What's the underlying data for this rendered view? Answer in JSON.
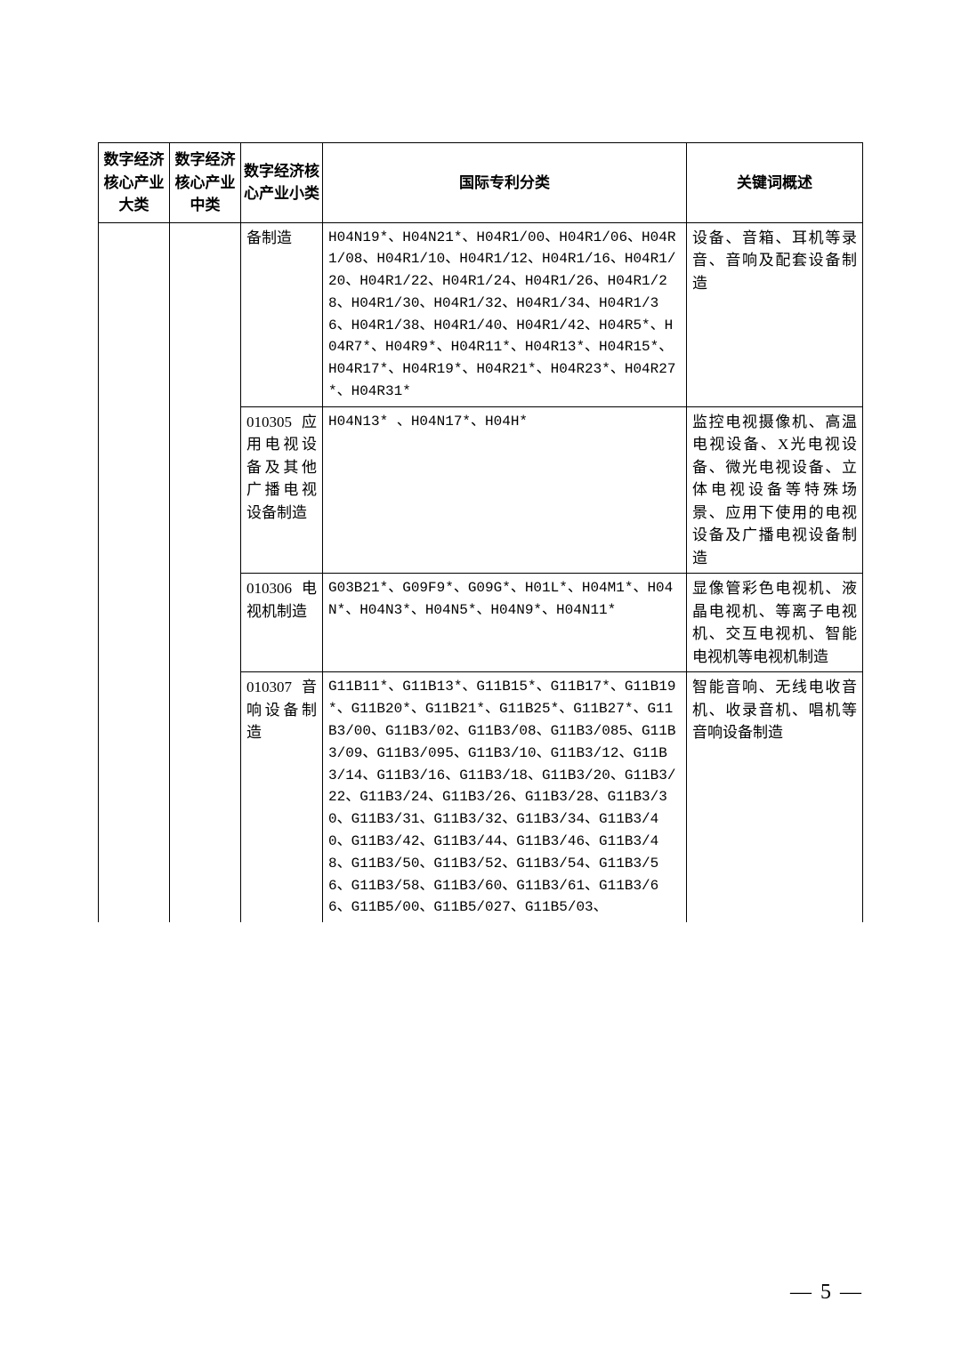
{
  "headers": {
    "col1": "数字经济核心产业大类",
    "col2": "数字经济核心产业中类",
    "col3": "数字经济核心产业小类",
    "col4": "国际专利分类",
    "col5": "关键词概述"
  },
  "rows": [
    {
      "subcat": "备制造",
      "patent": "H04N19*、H04N21*、H04R1/00、H04R1/06、H04R1/08、H04R1/10、H04R1/12、H04R1/16、H04R1/20、H04R1/22、H04R1/24、H04R1/26、H04R1/28、H04R1/30、H04R1/32、H04R1/34、H04R1/36、H04R1/38、H04R1/40、H04R1/42、H04R5*、H04R7*、H04R9*、H04R11*、H04R13*、H04R15*、H04R17*、H04R19*、H04R21*、H04R23*、H04R27*、H04R31*",
      "keywords": "设备、音箱、耳机等录音、音响及配套设备制造"
    },
    {
      "subcat": "010305 应用电视设备及其他广播电视设备制造",
      "patent": "H04N13* 、H04N17*、H04H*",
      "keywords": "监控电视摄像机、高温电视设备、X光电视设备、微光电视设备、立体电视设备等特殊场景、应用下使用的电视设备及广播电视设备制造"
    },
    {
      "subcat": "010306 电视机制造",
      "patent": "G03B21*、G09F9*、G09G*、H01L*、H04M1*、H04N*、H04N3*、H04N5*、H04N9*、H04N11*",
      "keywords": "显像管彩色电视机、液晶电视机、等离子电视机、交互电视机、智能电视机等电视机制造"
    },
    {
      "subcat": "010307 音响设备制造",
      "patent": "G11B11*、G11B13*、G11B15*、G11B17*、G11B19*、G11B20*、G11B21*、G11B25*、G11B27*、G11B3/00、G11B3/02、G11B3/08、G11B3/085、G11B3/09、G11B3/095、G11B3/10、G11B3/12、G11B3/14、G11B3/16、G11B3/18、G11B3/20、G11B3/22、G11B3/24、G11B3/26、G11B3/28、G11B3/30、G11B3/31、G11B3/32、G11B3/34、G11B3/40、G11B3/42、G11B3/44、G11B3/46、G11B3/48、G11B3/50、G11B3/52、G11B3/54、G11B3/56、G11B3/58、G11B3/60、G11B3/61、G11B3/66、G11B5/00、G11B5/027、G11B5/03、",
      "keywords": "智能音响、无线电收音机、收录音机、唱机等音响设备制造"
    }
  ],
  "page_number": "— 5 —"
}
